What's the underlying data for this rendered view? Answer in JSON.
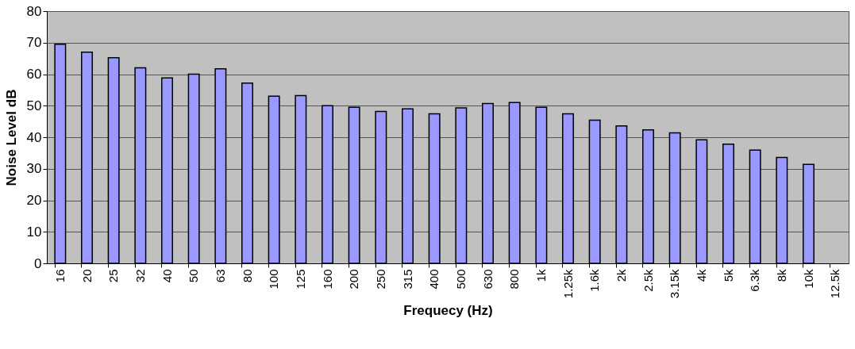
{
  "chart_data": {
    "type": "bar",
    "xlabel": "Frequecy (Hz)",
    "ylabel": "Noise Level dB",
    "categories": [
      "16",
      "20",
      "25",
      "32",
      "40",
      "50",
      "63",
      "80",
      "100",
      "125",
      "160",
      "200",
      "250",
      "315",
      "400",
      "500",
      "630",
      "800",
      "1k",
      "1.25k",
      "1.6k",
      "2k",
      "2.5k",
      "3.15k",
      "4k",
      "5k",
      "6.3k",
      "8k",
      "10k",
      "12.5k"
    ],
    "values": [
      69.5,
      67,
      65.2,
      62,
      58.8,
      60,
      61.7,
      57.2,
      53,
      53.2,
      50,
      49.5,
      48.2,
      49,
      47.4,
      49.3,
      50.7,
      51,
      49.5,
      47.4,
      45.4,
      43.6,
      42.3,
      41.4,
      39.2,
      37.8,
      35.9,
      33.6,
      31.4,
      null
    ],
    "color": "#9999ff",
    "ylim": [
      0,
      80
    ],
    "yticks": [
      0,
      10,
      20,
      30,
      40,
      50,
      60,
      70,
      80
    ],
    "grid": "y"
  }
}
